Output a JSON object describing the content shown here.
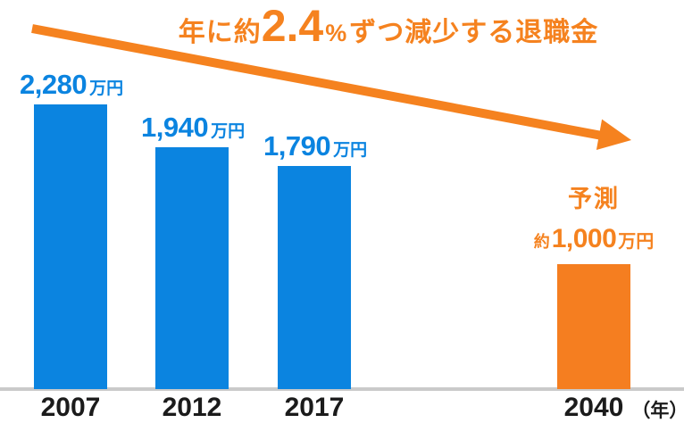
{
  "title": {
    "prefix": "年に約",
    "rate": "2.4",
    "percent_sign": "%",
    "suffix": "ずつ減少する退職金"
  },
  "chart_data": {
    "type": "bar",
    "title": "年に約2.4%ずつ減少する退職金",
    "categories": [
      "2007",
      "2012",
      "2017",
      "2040"
    ],
    "values": [
      2280,
      1940,
      1790,
      1000
    ],
    "unit": "万円",
    "x_axis_unit_label": "（年）",
    "ylim": [
      0,
      2400
    ],
    "grid": false,
    "legend": false,
    "annotations": [
      "downward trend arrow across chart",
      "forecast label on 2040 bar"
    ],
    "bars": [
      {
        "year": "2007",
        "value": 2280,
        "display_value": "2,280",
        "unit": "万円",
        "color": "#0B84E0",
        "kind": "actual"
      },
      {
        "year": "2012",
        "value": 1940,
        "display_value": "1,940",
        "unit": "万円",
        "color": "#0B84E0",
        "kind": "actual"
      },
      {
        "year": "2017",
        "value": 1790,
        "display_value": "1,790",
        "unit": "万円",
        "color": "#0B84E0",
        "kind": "actual"
      },
      {
        "year": "2040",
        "value": 1000,
        "display_value": "1,000",
        "value_prefix": "約",
        "unit": "万円",
        "color": "#F57E20",
        "kind": "forecast",
        "annotation": "予測"
      }
    ]
  },
  "colors": {
    "bar_blue": "#0B84E0",
    "accent_orange": "#F5821F",
    "bar_orange": "#F57E20",
    "axis_gray": "#CACACA",
    "year_text": "#1B1B1B",
    "background": "#FFFFFF"
  }
}
